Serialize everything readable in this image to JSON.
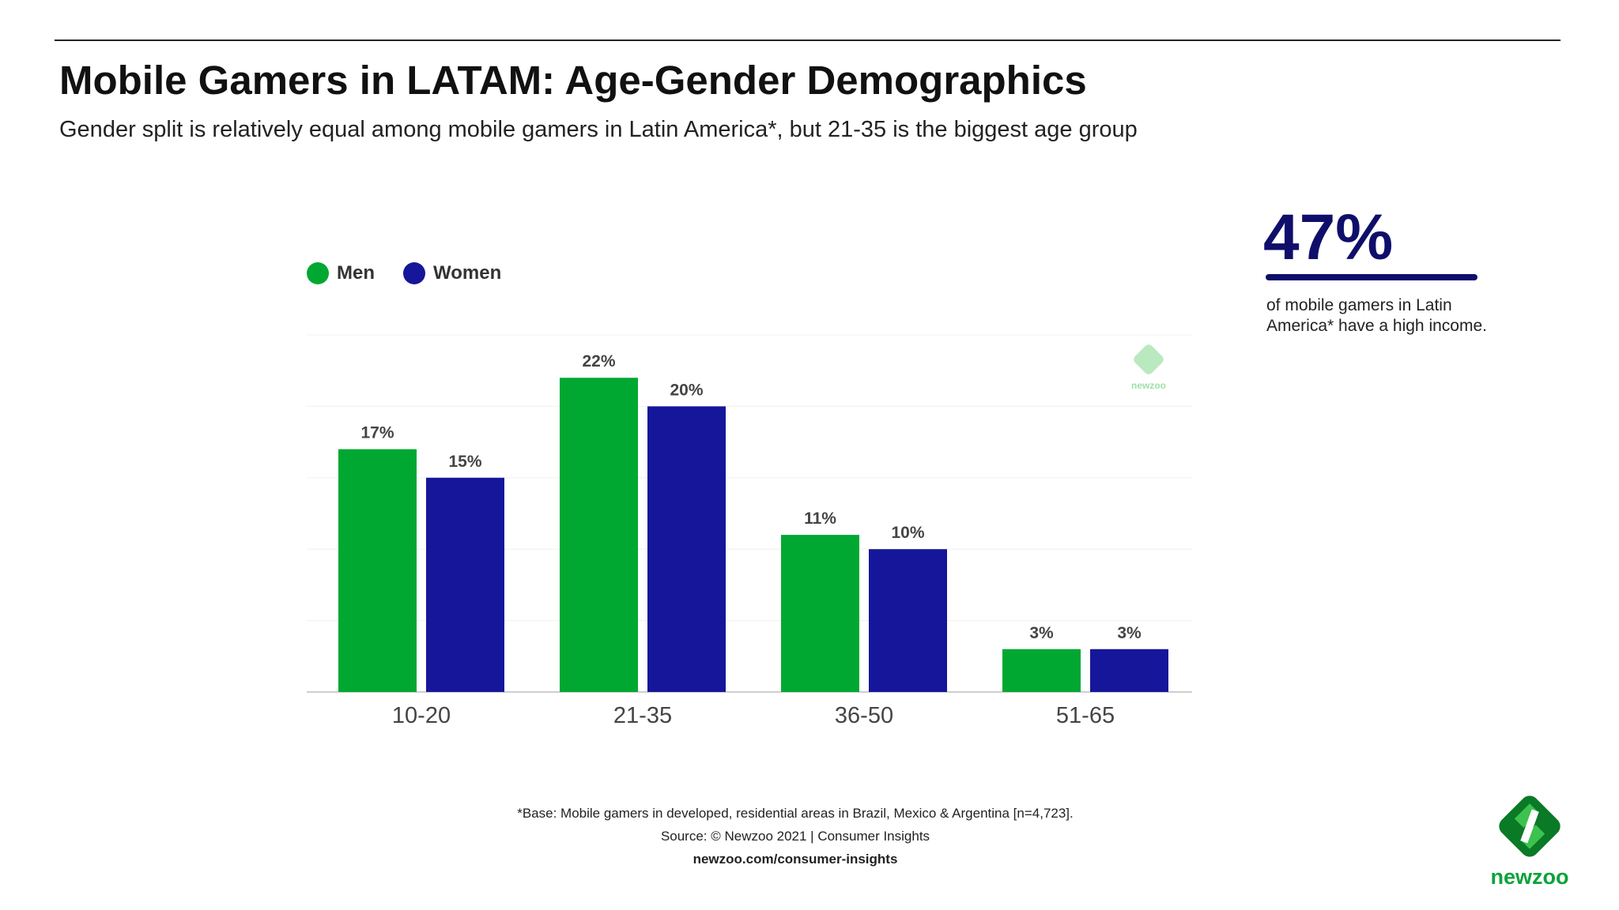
{
  "header": {
    "title": "Mobile Gamers in LATAM: Age-Gender Demographics",
    "subtitle": "Gender split is relatively equal among mobile gamers in Latin America*, but 21-35 is the biggest age group"
  },
  "colors": {
    "men": "#00a832",
    "women": "#16169a",
    "accent": "#0f0f6b"
  },
  "chart_data": {
    "type": "bar",
    "categories": [
      "10-20",
      "21-35",
      "36-50",
      "51-65"
    ],
    "series": [
      {
        "name": "Men",
        "values": [
          17,
          22,
          11,
          3
        ],
        "labels": [
          "17%",
          "22%",
          "11%",
          "3%"
        ]
      },
      {
        "name": "Women",
        "values": [
          15,
          20,
          10,
          3
        ],
        "labels": [
          "15%",
          "20%",
          "10%",
          "3%"
        ]
      }
    ],
    "ylim": [
      0,
      25
    ],
    "grid": true,
    "legend_position": "top-left"
  },
  "stat": {
    "value": "47%",
    "description": "of mobile gamers in Latin America* have a high income."
  },
  "footer": {
    "base": "*Base: Mobile gamers in developed, residential areas in Brazil, Mexico & Argentina [n=4,723].",
    "source": "Source: © Newzoo 2021 | Consumer Insights",
    "link": "newzoo.com/consumer-insights"
  },
  "logo": {
    "text": "newzoo"
  },
  "watermark": {
    "text": "newzoo"
  }
}
